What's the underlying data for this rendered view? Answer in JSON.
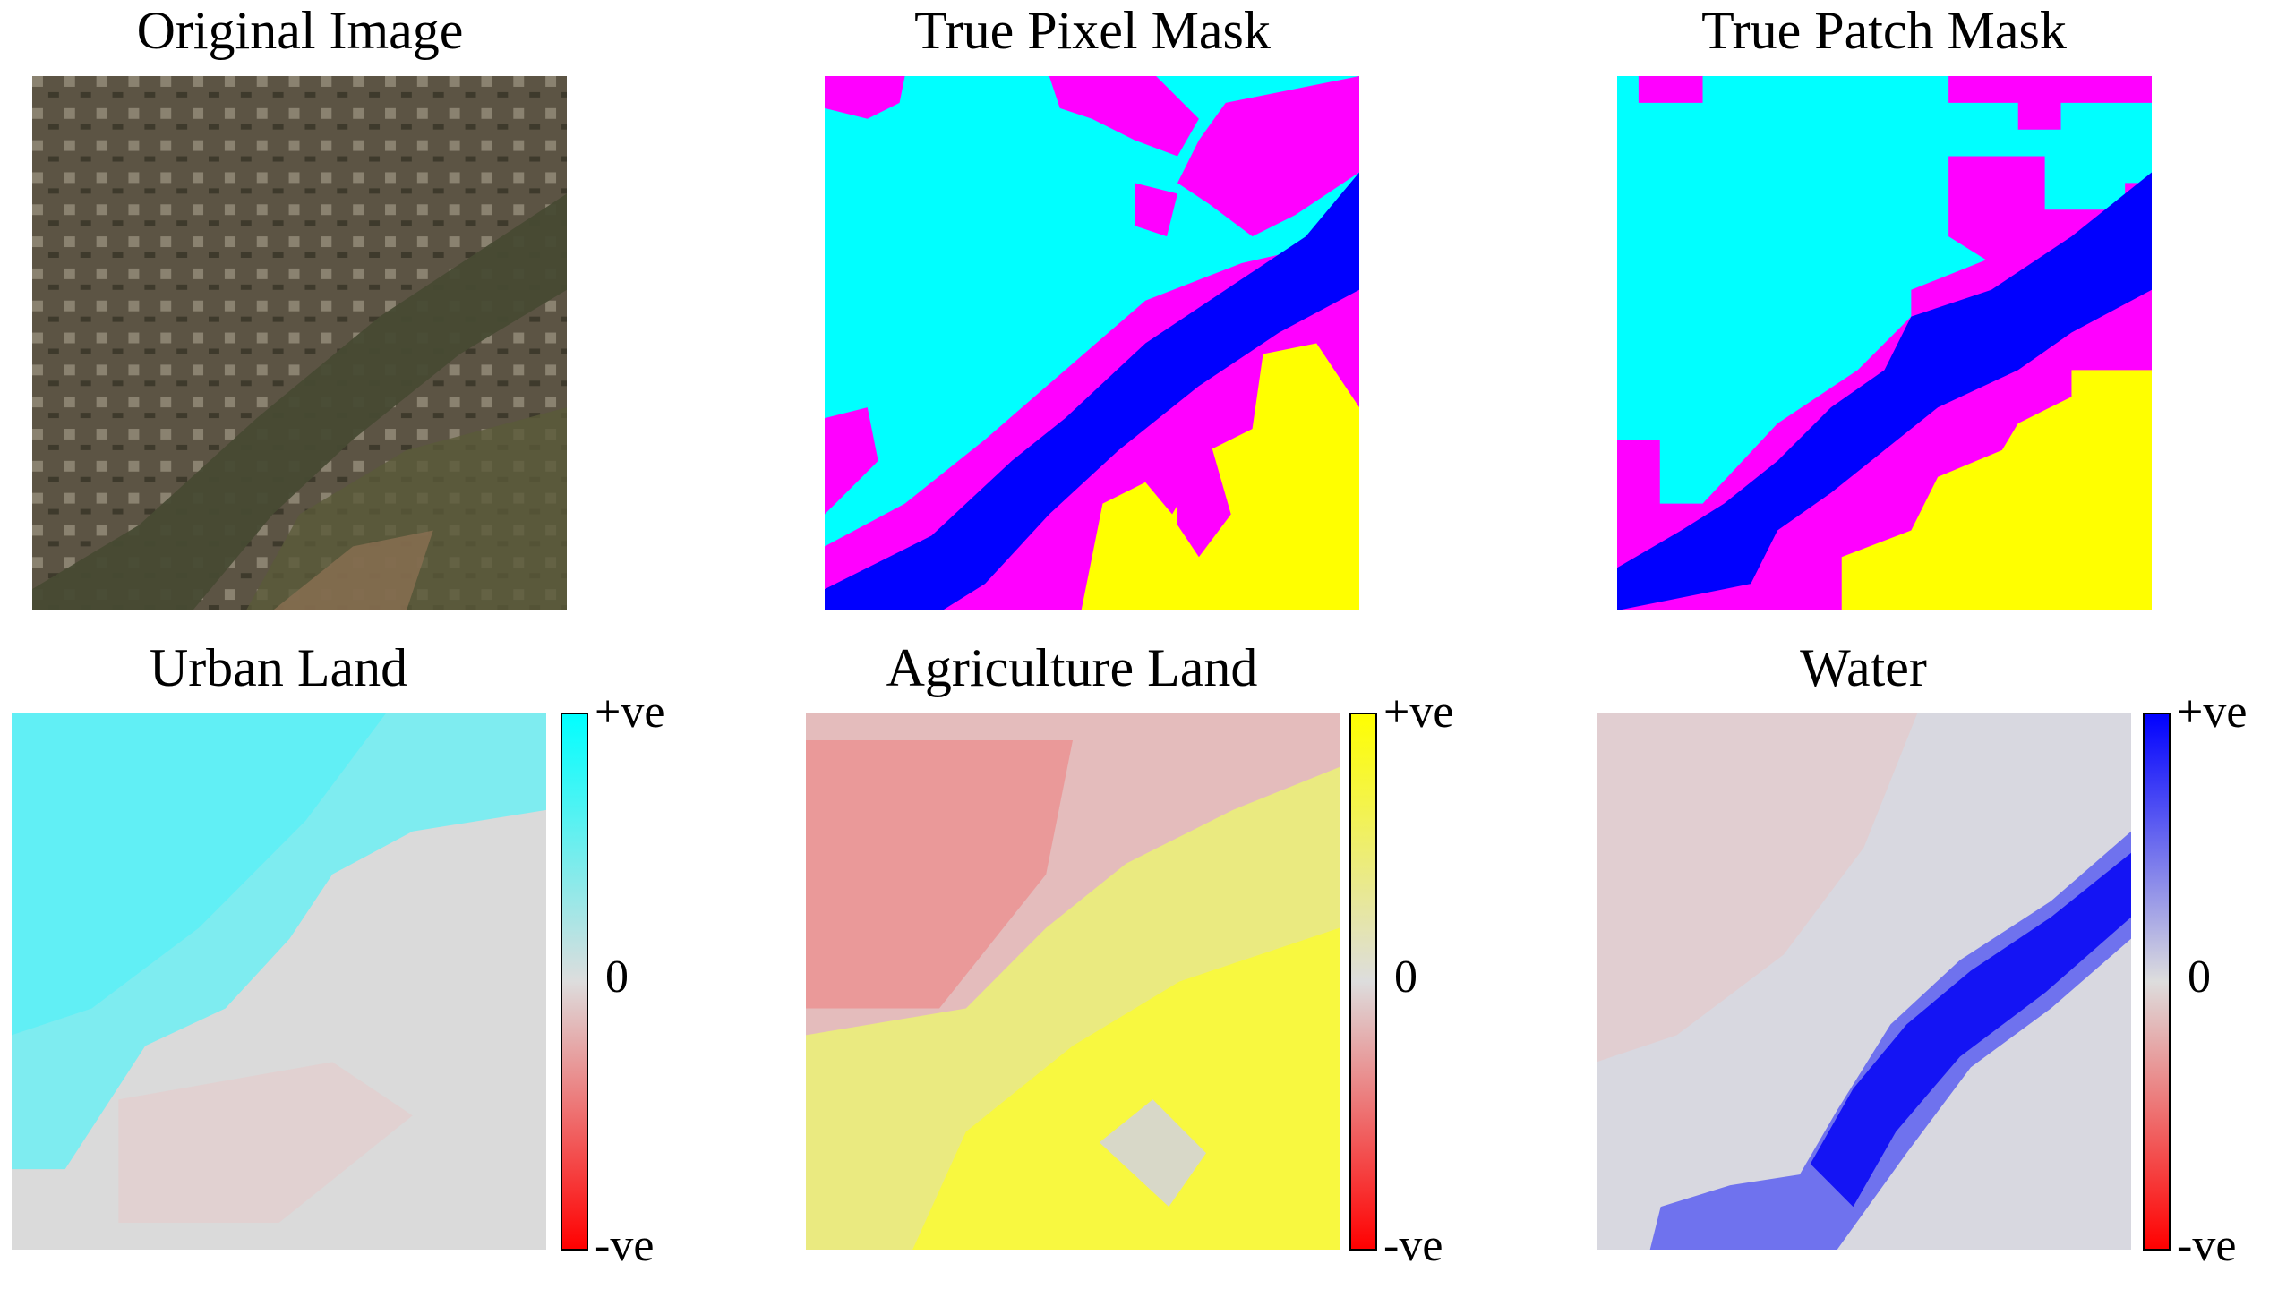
{
  "panels": [
    {
      "title": "Original Image"
    },
    {
      "title": "True Pixel Mask"
    },
    {
      "title": "True Patch Mask"
    },
    {
      "title": "Urban Land",
      "colorbar": [
        "+ve",
        "0",
        "-ve"
      ]
    },
    {
      "title": "Agriculture Land",
      "colorbar": [
        "+ve",
        "0",
        "-ve"
      ]
    },
    {
      "title": "Water",
      "colorbar": [
        "+ve",
        "0",
        "-ve"
      ]
    }
  ]
}
